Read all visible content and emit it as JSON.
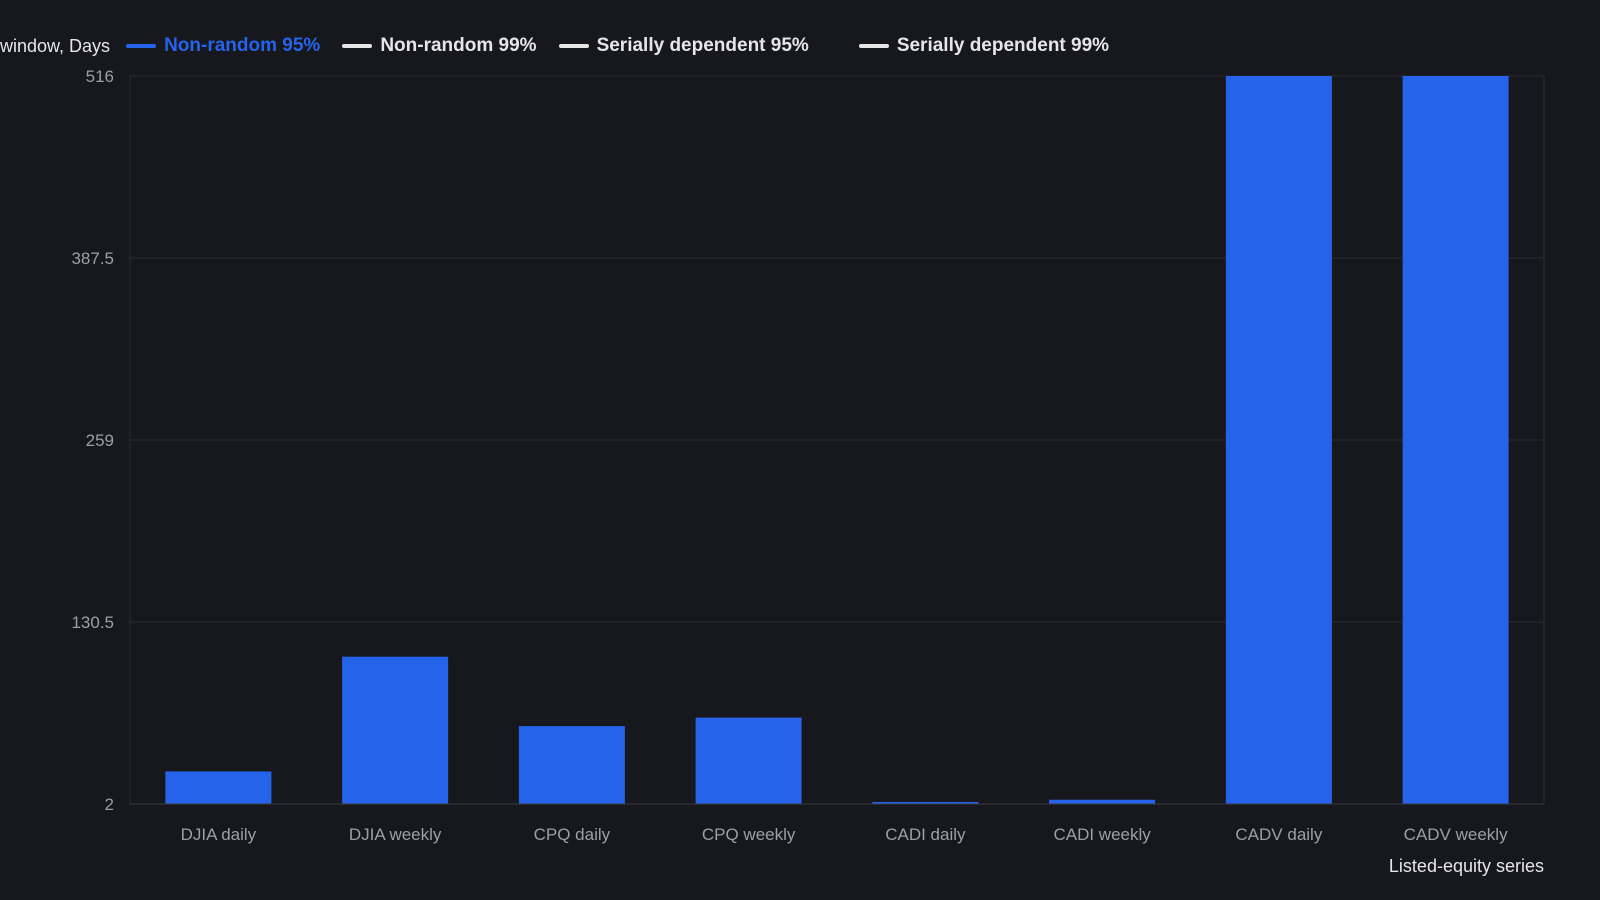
{
  "chart_data": {
    "type": "bar",
    "ylabel": "window, Days",
    "xlabel": "Listed-equity series",
    "categories": [
      "DJIA daily",
      "DJIA weekly",
      "CPQ daily",
      "CPQ weekly",
      "CADI daily",
      "CADI weekly",
      "CADV daily",
      "CADV weekly"
    ],
    "series": [
      {
        "name": "Non-random 95%",
        "color": "#2563eb",
        "active": true,
        "values": [
          25,
          106,
          57,
          63,
          1,
          5,
          516,
          516
        ]
      },
      {
        "name": "Non-random 99%",
        "color": "#e6e6e6",
        "active": false
      },
      {
        "name": "Serially dependent 95%",
        "color": "#e6e6e6",
        "active": false
      },
      {
        "name": "Serially dependent 99%",
        "color": "#e6e6e6",
        "active": false
      }
    ],
    "yticks": [
      2,
      130.5,
      259,
      387.5,
      516
    ],
    "ytick_labels": [
      "2",
      "130.5",
      "259",
      "387.5",
      "516"
    ],
    "ylim": [
      2,
      516
    ],
    "grid": true,
    "legend_position": "top"
  },
  "colors": {
    "background": "#16181d",
    "plot_background": "#16181d",
    "grid": "#2a2d33",
    "bar": "#2563eb",
    "text": "#e6e6e6",
    "tick_text": "#9aa0a6"
  }
}
